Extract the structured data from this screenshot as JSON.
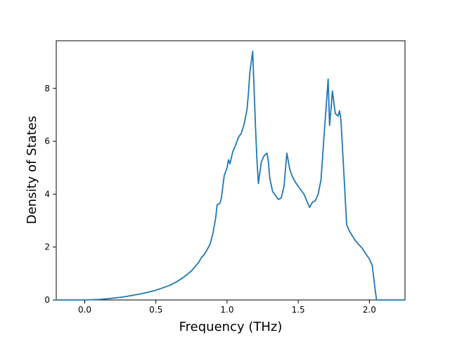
{
  "chart_data": {
    "type": "line",
    "title": "",
    "xlabel": "Frequency (THz)",
    "ylabel": "Density of States",
    "xlim": [
      -0.2,
      2.25
    ],
    "ylim": [
      0,
      9.8
    ],
    "grid": false,
    "x_ticks": [
      0.0,
      0.5,
      1.0,
      1.5,
      2.0
    ],
    "x_tick_labels": [
      "0.0",
      "0.5",
      "1.0",
      "1.5",
      "2.0"
    ],
    "y_ticks": [
      0,
      2,
      4,
      6,
      8
    ],
    "y_tick_labels": [
      "0",
      "2",
      "4",
      "6",
      "8"
    ],
    "series": [
      {
        "color": "#1f77b4",
        "points": [
          [
            -0.2,
            0.0
          ],
          [
            -0.1,
            0.0
          ],
          [
            0.0,
            0.0
          ],
          [
            0.05,
            0.01
          ],
          [
            0.1,
            0.02
          ],
          [
            0.15,
            0.04
          ],
          [
            0.2,
            0.07
          ],
          [
            0.25,
            0.1
          ],
          [
            0.3,
            0.14
          ],
          [
            0.35,
            0.19
          ],
          [
            0.4,
            0.24
          ],
          [
            0.45,
            0.3
          ],
          [
            0.5,
            0.37
          ],
          [
            0.55,
            0.46
          ],
          [
            0.6,
            0.56
          ],
          [
            0.65,
            0.7
          ],
          [
            0.7,
            0.88
          ],
          [
            0.75,
            1.1
          ],
          [
            0.8,
            1.42
          ],
          [
            0.82,
            1.6
          ],
          [
            0.84,
            1.72
          ],
          [
            0.86,
            1.9
          ],
          [
            0.88,
            2.1
          ],
          [
            0.9,
            2.5
          ],
          [
            0.92,
            3.1
          ],
          [
            0.93,
            3.6
          ],
          [
            0.95,
            3.65
          ],
          [
            0.96,
            3.85
          ],
          [
            0.98,
            4.7
          ],
          [
            1.0,
            5.0
          ],
          [
            1.01,
            5.3
          ],
          [
            1.02,
            5.15
          ],
          [
            1.04,
            5.6
          ],
          [
            1.06,
            5.85
          ],
          [
            1.08,
            6.15
          ],
          [
            1.1,
            6.3
          ],
          [
            1.12,
            6.65
          ],
          [
            1.14,
            7.2
          ],
          [
            1.15,
            7.8
          ],
          [
            1.16,
            8.6
          ],
          [
            1.18,
            9.4
          ],
          [
            1.2,
            6.5
          ],
          [
            1.21,
            5.3
          ],
          [
            1.22,
            4.4
          ],
          [
            1.24,
            5.2
          ],
          [
            1.26,
            5.45
          ],
          [
            1.28,
            5.55
          ],
          [
            1.29,
            5.25
          ],
          [
            1.3,
            4.6
          ],
          [
            1.32,
            4.1
          ],
          [
            1.34,
            3.95
          ],
          [
            1.36,
            3.8
          ],
          [
            1.38,
            3.85
          ],
          [
            1.4,
            4.3
          ],
          [
            1.42,
            5.55
          ],
          [
            1.44,
            4.95
          ],
          [
            1.46,
            4.65
          ],
          [
            1.48,
            4.45
          ],
          [
            1.5,
            4.3
          ],
          [
            1.52,
            4.15
          ],
          [
            1.54,
            4.0
          ],
          [
            1.56,
            3.75
          ],
          [
            1.58,
            3.5
          ],
          [
            1.6,
            3.7
          ],
          [
            1.62,
            3.75
          ],
          [
            1.64,
            4.0
          ],
          [
            1.66,
            4.55
          ],
          [
            1.68,
            6.1
          ],
          [
            1.7,
            7.6
          ],
          [
            1.71,
            8.35
          ],
          [
            1.72,
            6.6
          ],
          [
            1.73,
            7.2
          ],
          [
            1.74,
            7.9
          ],
          [
            1.76,
            7.05
          ],
          [
            1.78,
            6.95
          ],
          [
            1.79,
            7.15
          ],
          [
            1.8,
            6.8
          ],
          [
            1.82,
            4.85
          ],
          [
            1.84,
            2.85
          ],
          [
            1.86,
            2.6
          ],
          [
            1.9,
            2.25
          ],
          [
            1.95,
            1.95
          ],
          [
            1.98,
            1.7
          ],
          [
            2.0,
            1.55
          ],
          [
            2.02,
            1.3
          ],
          [
            2.04,
            0.4
          ],
          [
            2.05,
            0.0
          ],
          [
            2.1,
            0.0
          ],
          [
            2.2,
            0.0
          ],
          [
            2.25,
            0.0
          ]
        ]
      }
    ]
  }
}
